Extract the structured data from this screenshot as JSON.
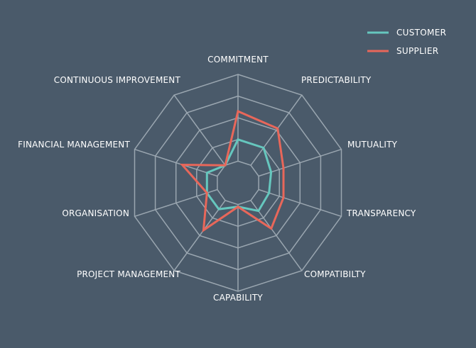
{
  "colors": {
    "background": "#4a5a6a",
    "grid": "#9aa6b0",
    "customer": "#66c7be",
    "supplier": "#e8675a"
  },
  "legend": {
    "placement": "top-right",
    "items": [
      {
        "label": "CUSTOMER",
        "color": "#66c7be"
      },
      {
        "label": "SUPPLIER",
        "color": "#e8675a"
      }
    ]
  },
  "chart_data": {
    "type": "radar",
    "grid": true,
    "rings": 5,
    "range": [
      0,
      5
    ],
    "categories": [
      "COMMITMENT",
      "PREDICTABILITY",
      "MUTUALITY",
      "TRANSPARENCY",
      "COMPATIBILTY",
      "CAPABILITY",
      "PROJECT MANAGEMENT",
      "ORGANISATION",
      "FINANCIAL MANAGEMENT",
      "CONTINUOUS IMPROVEMENT"
    ],
    "series": [
      {
        "name": "CUSTOMER",
        "values": [
          2.0,
          2.0,
          1.6,
          1.5,
          1.6,
          1.1,
          1.5,
          1.5,
          1.5,
          1.0
        ]
      },
      {
        "name": "SUPPLIER",
        "values": [
          3.3,
          3.1,
          2.2,
          2.2,
          2.6,
          1.1,
          2.7,
          1.5,
          2.7,
          1.0
        ]
      }
    ]
  }
}
